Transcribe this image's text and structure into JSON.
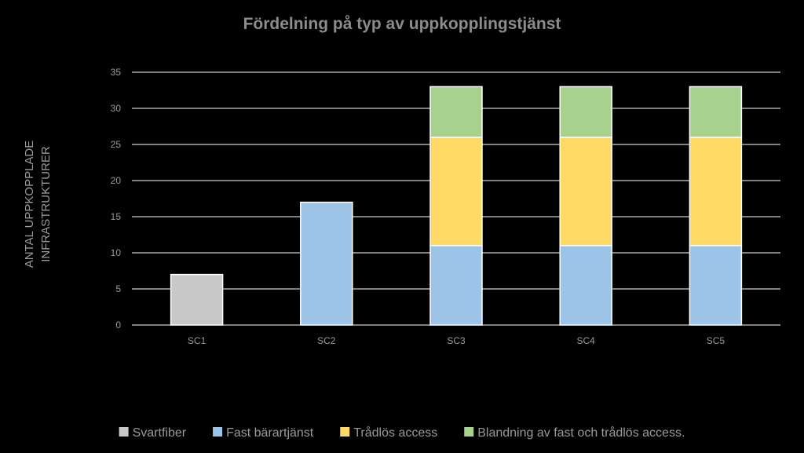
{
  "colors": {
    "background": "#000000",
    "title": "#8c8c8c",
    "text": "#9a9a9a",
    "gridline": "#ffffff",
    "bar_border": "#ffffff"
  },
  "chart_data": {
    "type": "bar",
    "stacked": true,
    "title": "Fördelning på typ av uppkopplingstjänst",
    "xlabel": "",
    "ylabel_lines": [
      "ANTAL UPPKOPPLADE",
      "INFRASTRUKTURER"
    ],
    "categories": [
      "SC1",
      "SC2",
      "SC3",
      "SC4",
      "SC5"
    ],
    "ylim": [
      0,
      35
    ],
    "yticks": [
      0,
      5,
      10,
      15,
      20,
      25,
      30,
      35
    ],
    "grid": true,
    "legend_position": "bottom",
    "series": [
      {
        "name": "Svartfiber",
        "color": "#c8c8c8",
        "values": [
          7,
          0,
          0,
          0,
          0
        ]
      },
      {
        "name": "Fast bärartjänst",
        "color": "#9dc3e6",
        "values": [
          0,
          17,
          11,
          11,
          11
        ]
      },
      {
        "name": "Trådlös access",
        "color": "#ffd966",
        "values": [
          0,
          0,
          15,
          15,
          15
        ]
      },
      {
        "name": "Blandning av fast och trådlös access.",
        "color": "#a9d18e",
        "values": [
          0,
          0,
          7,
          7,
          7
        ]
      }
    ]
  }
}
